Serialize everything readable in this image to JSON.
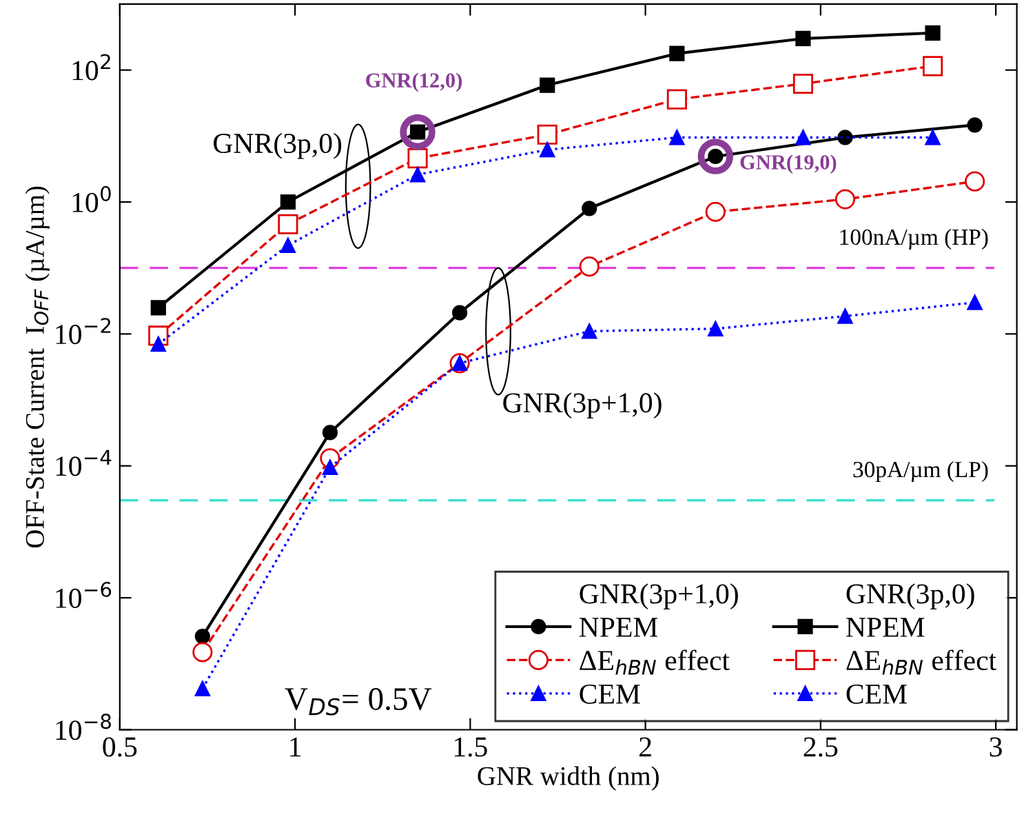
{
  "chart_data": {
    "type": "line",
    "xlabel": "GNR width (nm)",
    "ylabel": "OFF-State Current  I$_{OFF}$ (µA/µm)",
    "log": "y",
    "xlim": [
      0.5,
      3.06
    ],
    "xticks": [
      0.5,
      1,
      1.5,
      2,
      2.5,
      3
    ],
    "ylim": [
      1e-08,
      1000
    ],
    "yticks": [
      {
        "value": 1e-08,
        "label": "10$^{−8}$"
      },
      {
        "value": 1e-06,
        "label": "10$^{−6}$"
      },
      {
        "value": 0.0001,
        "label": "10$^{−4}$"
      },
      {
        "value": 0.01,
        "label": "10$^{−2}$"
      },
      {
        "value": 1,
        "label": "10$^{0}$"
      },
      {
        "value": 100,
        "label": "10$^{2}$"
      }
    ],
    "grid": false,
    "legend": "bottom right",
    "series": [
      {
        "name": "NPEM",
        "color": "#000000",
        "marker": "circle",
        "line_style": "solid",
        "x": [
          0.736,
          1.1,
          1.47,
          1.84,
          2.2,
          2.57,
          2.94
        ],
        "values": [
          2.6e-07,
          0.00032,
          0.021,
          0.8,
          4.9,
          9.5,
          14.7
        ]
      },
      {
        "name": "ΔE$_{hBN}$ effect",
        "color": "#e00000",
        "marker": "circle",
        "line_style": "dashed",
        "x": [
          0.736,
          1.1,
          1.47,
          1.84,
          2.2,
          2.57,
          2.94
        ],
        "values": [
          1.5e-07,
          0.00013,
          0.0036,
          0.105,
          0.71,
          1.1,
          2.05
        ]
      },
      {
        "name": "CEM",
        "color": "#0000ff",
        "marker": "triangle",
        "line_style": "dotted",
        "x": [
          0.736,
          1.1,
          1.47,
          1.84,
          2.2,
          2.57,
          2.94
        ],
        "values": [
          4.2e-08,
          9.5e-05,
          0.0036,
          0.011,
          0.012,
          0.0186,
          0.03
        ]
      },
      {
        "name": "NPEM",
        "color": "#000000",
        "marker": "square",
        "line_style": "solid",
        "x": [
          0.61,
          0.98,
          1.35,
          1.72,
          2.09,
          2.45,
          2.82
        ],
        "values": [
          0.025,
          1.0,
          11.5,
          59,
          178,
          300,
          365
        ]
      },
      {
        "name": "ΔE$_{hBN}$ effect",
        "color": "#e00000",
        "marker": "square",
        "line_style": "dashed",
        "x": [
          0.61,
          0.98,
          1.35,
          1.72,
          2.09,
          2.45,
          2.82
        ],
        "values": [
          0.0094,
          0.46,
          4.6,
          10.5,
          36,
          62,
          115
        ]
      },
      {
        "name": "CEM",
        "color": "#0000ff",
        "marker": "triangle",
        "line_style": "dotted",
        "x": [
          0.61,
          0.98,
          1.35,
          1.72,
          2.09,
          2.45,
          2.82
        ],
        "values": [
          0.007,
          0.22,
          2.6,
          6.2,
          9.5,
          9.5,
          9.5
        ]
      }
    ],
    "ref_lines": [
      {
        "axis": "y",
        "value": 0.1,
        "label": "100nA/µm (HP)",
        "color": "#e040e0",
        "line_style": "dashed"
      },
      {
        "axis": "y",
        "value": 3e-05,
        "label": "30pA/µm (LP)",
        "color": "#40e0d0",
        "line_style": "dashed"
      }
    ],
    "annotations": [
      {
        "text": "GNR(12,0)",
        "x": 1.35,
        "y": 11.5
      },
      {
        "text": "GNR(19,0)",
        "x": 2.2,
        "y": 4.9
      },
      "GNR(3p+1,0)",
      "GNR(3p,0)",
      "V$_{DS}$= 0.5V"
    ]
  }
}
